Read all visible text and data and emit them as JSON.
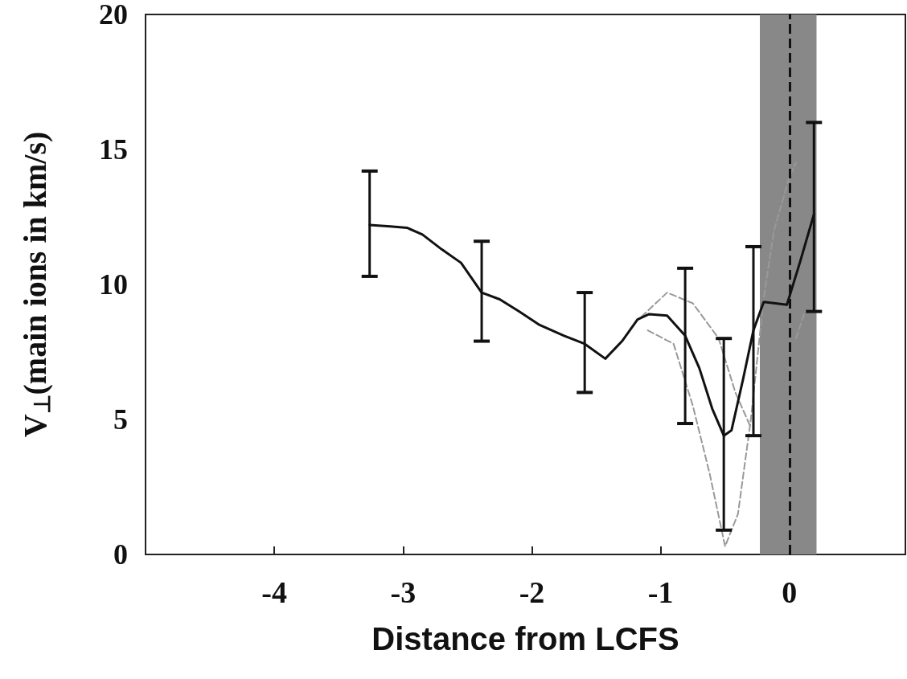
{
  "chart_data": {
    "type": "line",
    "xlabel": "Distance from LCFS",
    "ylabel": "V$_{⊥}$(main ions in km/s)",
    "xlim": [
      -5,
      0.9
    ],
    "xticks": [
      -4,
      -3,
      -2,
      -1,
      0
    ],
    "ylim": [
      0,
      20
    ],
    "yticks": [
      0,
      5,
      10,
      15,
      20
    ],
    "grid": false,
    "marker": "none",
    "series": [
      {
        "color": "#111111",
        "line_style": "solid",
        "x": [
          -3.26,
          -3.1,
          -2.97,
          -2.85,
          -2.7,
          -2.55,
          -2.39,
          -2.25,
          -2.1,
          -1.94,
          -1.75,
          -1.59,
          -1.43,
          -1.3,
          -1.18,
          -1.09,
          -0.95,
          -0.81,
          -0.7,
          -0.6,
          -0.51,
          -0.45,
          -0.36,
          -0.28,
          -0.2,
          -0.02,
          0.08,
          0.19
        ],
        "values": [
          12.2,
          12.15,
          12.1,
          11.85,
          11.3,
          10.8,
          9.7,
          9.45,
          9.0,
          8.5,
          8.1,
          7.8,
          7.25,
          7.9,
          8.7,
          8.9,
          8.85,
          8.1,
          6.9,
          5.4,
          4.4,
          4.6,
          6.5,
          8.3,
          9.35,
          9.25,
          10.8,
          12.6
        ],
        "errors": [
          [
            10.3,
            14.2
          ],
          null,
          null,
          null,
          null,
          null,
          [
            7.9,
            11.6
          ],
          null,
          null,
          null,
          null,
          [
            6.0,
            9.7
          ],
          null,
          null,
          null,
          null,
          null,
          [
            4.85,
            10.6
          ],
          null,
          null,
          [
            0.9,
            8.0
          ],
          null,
          null,
          [
            4.4,
            11.4
          ],
          null,
          null,
          null,
          [
            9.0,
            16.0
          ]
        ]
      },
      {
        "color": "#999999",
        "line_style": "dashed",
        "x": [
          -1.15,
          -0.95,
          -0.75,
          -0.55,
          -0.42,
          -0.3
        ],
        "values": [
          8.8,
          9.7,
          9.3,
          8.0,
          6.0,
          4.7
        ]
      },
      {
        "color": "#999999",
        "line_style": "dashed",
        "x": [
          -1.1,
          -0.9,
          -0.75,
          -0.62,
          -0.5,
          -0.4,
          -0.3,
          -0.2,
          -0.12,
          0,
          0.05
        ],
        "values": [
          8.3,
          7.8,
          5.5,
          3.0,
          0.3,
          1.5,
          5.0,
          9.5,
          12.0,
          14.0,
          14.5
        ]
      },
      {
        "color": "#999999",
        "line_style": "dashed",
        "x": [
          0.05,
          0.12,
          0.2
        ],
        "values": [
          8.0,
          9.0,
          9.1
        ]
      }
    ],
    "bands": [
      {
        "axis": "x",
        "from": -0.23,
        "to": 0.21,
        "color": "#888888"
      }
    ],
    "ref_lines": [
      {
        "axis": "x",
        "value": 0,
        "color": "#111111",
        "line_style": "dashed"
      }
    ]
  }
}
